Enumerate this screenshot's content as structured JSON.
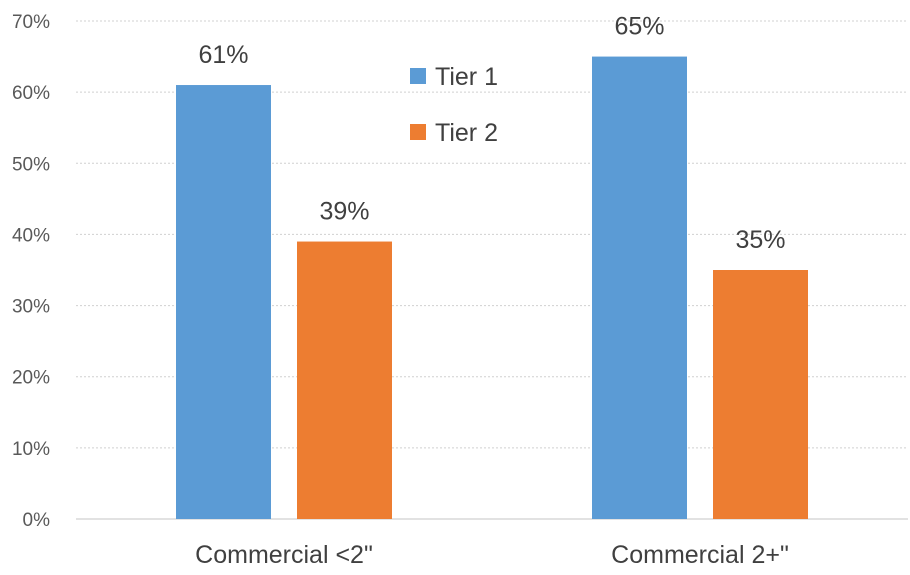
{
  "chart_data": {
    "type": "bar",
    "title": "",
    "xlabel": "",
    "ylabel": "",
    "categories": [
      "Commercial <2\"",
      "Commercial 2+\""
    ],
    "series": [
      {
        "name": "Tier 1",
        "values": [
          61,
          65
        ],
        "labels": [
          "61%",
          "65%"
        ],
        "color": "#5B9BD5"
      },
      {
        "name": "Tier 2",
        "values": [
          39,
          35
        ],
        "labels": [
          "39%",
          "35%"
        ],
        "color": "#ED7D31"
      }
    ],
    "ylim": [
      0,
      70
    ],
    "y_ticks": [
      0,
      10,
      20,
      30,
      40,
      50,
      60,
      70
    ],
    "y_tick_labels": [
      "0%",
      "10%",
      "20%",
      "30%",
      "40%",
      "50%",
      "60%",
      "70%"
    ],
    "grid": true,
    "legend_position": "top-center"
  }
}
